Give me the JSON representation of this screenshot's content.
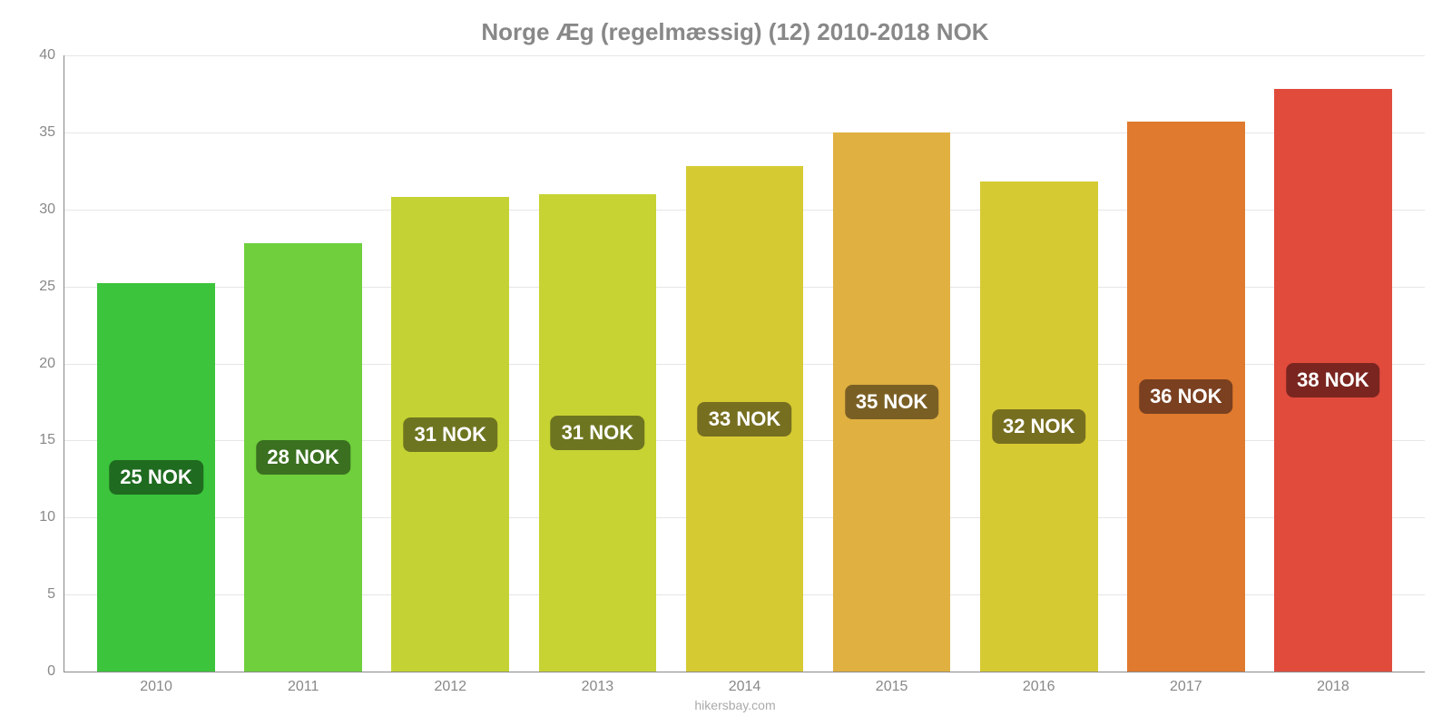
{
  "chart": {
    "type": "bar",
    "title": "Norge Æg (regelmæssig) (12) 2010-2018 NOK",
    "title_color": "#888888",
    "title_fontsize": 26,
    "background_color": "#ffffff",
    "grid_color": "#e6e6e6",
    "axis_color": "#888888",
    "tick_color": "#888888",
    "tick_fontsize": 16,
    "ylim": [
      0,
      40
    ],
    "yticks": [
      0,
      5,
      10,
      15,
      20,
      25,
      30,
      35,
      40
    ],
    "categories": [
      "2010",
      "2011",
      "2012",
      "2013",
      "2014",
      "2015",
      "2016",
      "2017",
      "2018"
    ],
    "values": [
      25,
      28,
      31,
      31,
      33,
      35,
      32,
      36,
      38
    ],
    "heights": [
      25.2,
      27.8,
      30.8,
      31.0,
      32.8,
      35.0,
      31.8,
      35.7,
      37.8
    ],
    "bar_colors": [
      "#3cc43c",
      "#6fcf3c",
      "#c4d333",
      "#c7d333",
      "#d6ca33",
      "#e0b040",
      "#d6ca33",
      "#e07a2e",
      "#e04b3c"
    ],
    "label_bg_colors": [
      "#1f6b1f",
      "#3a7020",
      "#6e7520",
      "#6e7520",
      "#776f20",
      "#7a5f25",
      "#776f20",
      "#7a4020",
      "#7a2520"
    ],
    "bar_labels": [
      "25 NOK",
      "28 NOK",
      "31 NOK",
      "31 NOK",
      "33 NOK",
      "35 NOK",
      "32 NOK",
      "36 NOK",
      "38 NOK"
    ],
    "bar_width_pct": 80,
    "value_label_fontsize": 22,
    "value_label_color": "#ffffff",
    "attribution": "hikersbay.com",
    "attribution_color": "#aaaaaa"
  }
}
